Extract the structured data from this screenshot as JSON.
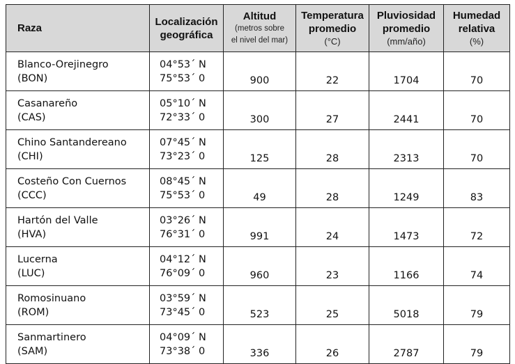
{
  "table": {
    "headers": {
      "raza": "Raza",
      "localizacion": [
        "Localización",
        "geográfica"
      ],
      "altitud": [
        "Altitud",
        "(metros sobre",
        "el nivel del mar)"
      ],
      "temperatura": [
        "Temperatura",
        "promedio",
        "(°C)"
      ],
      "pluviosidad": [
        "Pluviosidad",
        "promedio",
        "(mm/año)"
      ],
      "humedad": [
        "Humedad",
        "relativa",
        "(%)"
      ]
    },
    "rows": [
      {
        "raza": [
          "Blanco-Orejinegro",
          "(BON)"
        ],
        "loc": [
          "04°53´ N",
          "75°53´ 0"
        ],
        "altitud": "900",
        "temperatura": "22",
        "pluviosidad": "1704",
        "humedad": "70"
      },
      {
        "raza": [
          "Casanareño",
          "(CAS)"
        ],
        "loc": [
          "05°10´ N",
          "72°33´ 0"
        ],
        "altitud": "300",
        "temperatura": "27",
        "pluviosidad": "2441",
        "humedad": "70"
      },
      {
        "raza": [
          "Chino Santandereano",
          "(CHI)"
        ],
        "loc": [
          "07°45´ N",
          "73°23´ 0"
        ],
        "altitud": "125",
        "temperatura": "28",
        "pluviosidad": "2313",
        "humedad": "70"
      },
      {
        "raza": [
          "Costeño Con Cuernos",
          "(CCC)"
        ],
        "loc": [
          "08°45´ N",
          "75°53´ 0"
        ],
        "altitud": "49",
        "temperatura": "28",
        "pluviosidad": "1249",
        "humedad": "83"
      },
      {
        "raza": [
          "Hartón del Valle",
          "(HVA)"
        ],
        "loc": [
          "03°26´ N",
          "76°31´ 0"
        ],
        "altitud": "991",
        "temperatura": "24",
        "pluviosidad": "1473",
        "humedad": "72"
      },
      {
        "raza": [
          "Lucerna",
          "(LUC)"
        ],
        "loc": [
          "04°12´ N",
          "76°09´ 0"
        ],
        "altitud": "960",
        "temperatura": "23",
        "pluviosidad": "1166",
        "humedad": "74"
      },
      {
        "raza": [
          "Romosinuano",
          "(ROM)"
        ],
        "loc": [
          "03°59´ N",
          "73°45´ 0"
        ],
        "altitud": "523",
        "temperatura": "25",
        "pluviosidad": "5018",
        "humedad": "79"
      },
      {
        "raza": [
          "Sanmartinero",
          "(SAM)"
        ],
        "loc": [
          "04°09´ N",
          "73°38´ 0"
        ],
        "altitud": "336",
        "temperatura": "26",
        "pluviosidad": "2787",
        "humedad": "79"
      }
    ]
  }
}
